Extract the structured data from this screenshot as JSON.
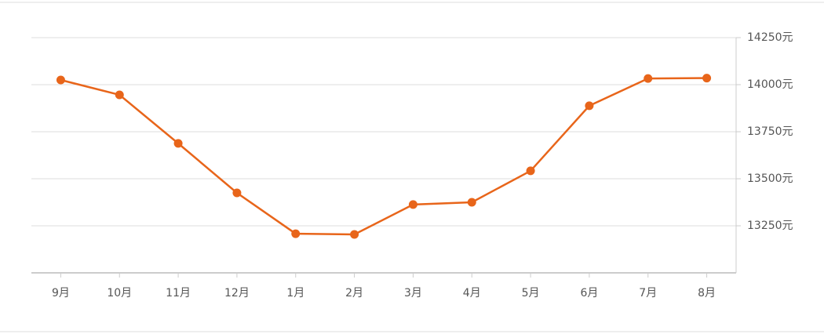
{
  "chart_data": {
    "type": "line",
    "categories": [
      "9月",
      "10月",
      "11月",
      "12月",
      "1月",
      "2月",
      "3月",
      "4月",
      "5月",
      "6月",
      "7月",
      "8月"
    ],
    "series": [
      {
        "color": "#e8651a",
        "values": [
          14025,
          13946,
          13688,
          13425,
          13208,
          13204,
          13363,
          13375,
          13542,
          13888,
          14033,
          14035
        ]
      }
    ],
    "ylim": [
      13000,
      14250
    ],
    "yticks": [
      {
        "value": 13250,
        "label": "13250元"
      },
      {
        "value": 13500,
        "label": "13500元"
      },
      {
        "value": 13750,
        "label": "13750元"
      },
      {
        "value": 14000,
        "label": "14000元"
      },
      {
        "value": 14250,
        "label": "14250元"
      }
    ],
    "grid": true
  }
}
